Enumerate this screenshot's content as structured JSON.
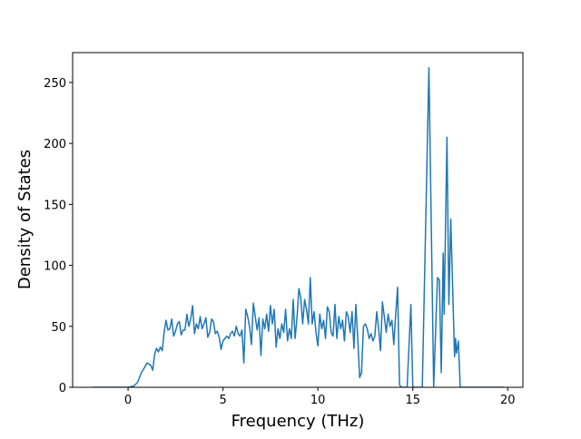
{
  "chart_data": {
    "type": "line",
    "xlabel": "Frequency (THz)",
    "ylabel": "Density of States",
    "color": "#1f77b4",
    "xlim": [
      -2.92,
      20.8
    ],
    "ylim": [
      0,
      274.5
    ],
    "xticks": [
      0,
      5,
      10,
      15,
      20
    ],
    "yticks": [
      0,
      50,
      100,
      150,
      200,
      250
    ],
    "x": [
      -1.9,
      0,
      0.3,
      0.5,
      0.7,
      0.9,
      1.0,
      1.2,
      1.3,
      1.4,
      1.5,
      1.6,
      1.7,
      1.8,
      1.9,
      2.0,
      2.1,
      2.2,
      2.3,
      2.4,
      2.5,
      2.6,
      2.7,
      2.8,
      2.9,
      3.0,
      3.1,
      3.2,
      3.3,
      3.4,
      3.5,
      3.6,
      3.7,
      3.8,
      3.9,
      4.0,
      4.1,
      4.2,
      4.3,
      4.4,
      4.5,
      4.6,
      4.7,
      4.8,
      4.9,
      5.0,
      5.1,
      5.2,
      5.3,
      5.4,
      5.5,
      5.6,
      5.7,
      5.8,
      5.9,
      6.0,
      6.1,
      6.2,
      6.3,
      6.4,
      6.5,
      6.6,
      6.7,
      6.8,
      6.9,
      7.0,
      7.1,
      7.2,
      7.3,
      7.4,
      7.5,
      7.6,
      7.7,
      7.8,
      7.9,
      8.0,
      8.1,
      8.2,
      8.3,
      8.4,
      8.5,
      8.6,
      8.7,
      8.8,
      8.9,
      9.0,
      9.1,
      9.2,
      9.3,
      9.4,
      9.5,
      9.6,
      9.7,
      9.8,
      9.9,
      10.0,
      10.1,
      10.2,
      10.3,
      10.4,
      10.5,
      10.6,
      10.7,
      10.8,
      10.9,
      11.0,
      11.1,
      11.2,
      11.3,
      11.4,
      11.5,
      11.6,
      11.7,
      11.8,
      11.9,
      12.0,
      12.1,
      12.2,
      12.3,
      12.4,
      12.5,
      12.6,
      12.7,
      12.8,
      12.9,
      13.0,
      13.1,
      13.2,
      13.3,
      13.4,
      13.5,
      13.6,
      13.7,
      13.8,
      13.9,
      14.0,
      14.1,
      14.2,
      14.3,
      14.4,
      14.7,
      14.9,
      15.0,
      15.5,
      15.85,
      16.1,
      16.3,
      16.4,
      16.5,
      16.6,
      16.65,
      16.8,
      16.9,
      17.0,
      17.2,
      17.25,
      17.3,
      17.4,
      17.5,
      19.8
    ],
    "values": [
      0,
      0,
      1,
      4,
      12,
      17,
      20,
      18,
      14,
      27,
      32,
      29,
      33,
      30,
      45,
      55,
      47,
      48,
      56,
      42,
      46,
      52,
      54,
      43,
      47,
      47,
      60,
      50,
      56,
      67,
      44,
      52,
      48,
      58,
      48,
      52,
      57,
      41,
      45,
      56,
      54,
      44,
      46,
      41,
      31,
      38,
      40,
      42,
      40,
      44,
      46,
      42,
      50,
      44,
      42,
      47,
      20,
      64,
      58,
      50,
      35,
      69,
      58,
      47,
      57,
      26,
      56,
      48,
      60,
      46,
      67,
      52,
      64,
      33,
      48,
      40,
      52,
      45,
      64,
      38,
      48,
      40,
      72,
      40,
      57,
      81,
      73,
      52,
      72,
      64,
      52,
      90,
      52,
      62,
      45,
      34,
      60,
      48,
      55,
      40,
      66,
      62,
      45,
      42,
      68,
      40,
      58,
      48,
      55,
      38,
      62,
      58,
      45,
      62,
      32,
      68,
      40,
      8,
      12,
      50,
      52,
      48,
      40,
      44,
      38,
      42,
      62,
      48,
      30,
      70,
      58,
      45,
      60,
      50,
      55,
      35,
      60,
      82,
      2,
      0,
      0,
      68,
      0,
      0,
      262,
      0,
      90,
      88,
      12,
      110,
      60,
      205,
      68,
      138,
      25,
      40,
      28,
      38,
      0,
      0
    ]
  }
}
